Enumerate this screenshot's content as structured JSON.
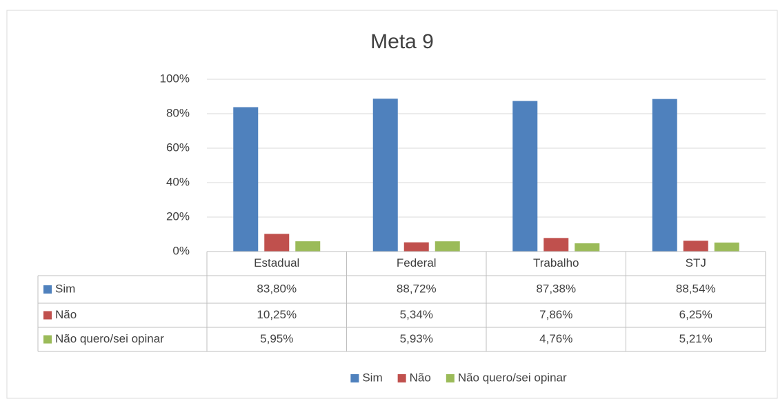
{
  "chart_data": {
    "type": "bar",
    "title": "Meta 9",
    "categories": [
      "Estadual",
      "Federal",
      "Trabalho",
      "STJ"
    ],
    "series": [
      {
        "name": "Sim",
        "color": "#4f81bd",
        "values": [
          83.8,
          88.72,
          87.38,
          88.54
        ],
        "value_labels": [
          "83,80%",
          "88,72%",
          "87,38%",
          "88,54%"
        ]
      },
      {
        "name": "Não",
        "color": "#c0504d",
        "values": [
          10.25,
          5.34,
          7.86,
          6.25
        ],
        "value_labels": [
          "10,25%",
          "5,34%",
          "7,86%",
          "6,25%"
        ]
      },
      {
        "name": "Não quero/sei opinar",
        "color": "#9bbb59",
        "values": [
          5.95,
          5.93,
          4.76,
          5.21
        ],
        "value_labels": [
          "5,95%",
          "5,93%",
          "4,76%",
          "5,21%"
        ]
      }
    ],
    "ylim": [
      0,
      100
    ],
    "yticks": [
      {
        "value": 0,
        "label": "0%"
      },
      {
        "value": 20,
        "label": "20%"
      },
      {
        "value": 40,
        "label": "40%"
      },
      {
        "value": 60,
        "label": "60%"
      },
      {
        "value": 80,
        "label": "80%"
      },
      {
        "value": 100,
        "label": "100%"
      }
    ],
    "grid": true,
    "legend": "bottom"
  }
}
